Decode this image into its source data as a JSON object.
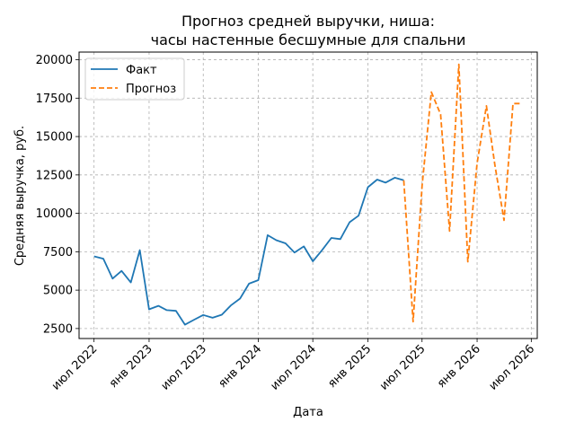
{
  "chart_data": {
    "type": "line",
    "title_line1": "Прогноз средней выручки, ниша:",
    "title_line2": "часы настенные бесшумные для спальни",
    "xlabel": "Дата",
    "ylabel": "Средняя выручка, руб.",
    "x_ticks": [
      {
        "date": "2022-07-01",
        "label": "июл 2022"
      },
      {
        "date": "2023-01-01",
        "label": "янв 2023"
      },
      {
        "date": "2023-07-01",
        "label": "июл 2023"
      },
      {
        "date": "2024-01-01",
        "label": "янв 2024"
      },
      {
        "date": "2024-07-01",
        "label": "июл 2024"
      },
      {
        "date": "2025-01-01",
        "label": "янв 2025"
      },
      {
        "date": "2025-07-01",
        "label": "июл 2025"
      },
      {
        "date": "2026-01-01",
        "label": "янв 2026"
      },
      {
        "date": "2026-07-01",
        "label": "июл 2026"
      }
    ],
    "y_ticks": [
      {
        "value": 2500,
        "label": "2500"
      },
      {
        "value": 5000,
        "label": "5000"
      },
      {
        "value": 7500,
        "label": "7500"
      },
      {
        "value": 10000,
        "label": "10000"
      },
      {
        "value": 12500,
        "label": "12500"
      },
      {
        "value": 15000,
        "label": "15000"
      },
      {
        "value": 17500,
        "label": "17500"
      },
      {
        "value": 20000,
        "label": "20000"
      }
    ],
    "xlim": [
      "2022-05-12",
      "2026-07-21"
    ],
    "ylim": [
      1850,
      20500
    ],
    "grid": true,
    "legend_position": "top-left",
    "series": [
      {
        "name": "Факт",
        "color": "#1f77b4",
        "style": "solid",
        "x": [
          "2022-07-01",
          "2022-08-01",
          "2022-09-01",
          "2022-10-01",
          "2022-11-01",
          "2022-12-01",
          "2023-01-01",
          "2023-02-01",
          "2023-03-01",
          "2023-04-01",
          "2023-05-01",
          "2023-06-01",
          "2023-07-01",
          "2023-08-01",
          "2023-09-01",
          "2023-10-01",
          "2023-11-01",
          "2023-12-01",
          "2024-01-01",
          "2024-02-01",
          "2024-03-01",
          "2024-04-01",
          "2024-05-01",
          "2024-06-01",
          "2024-07-01",
          "2024-08-01",
          "2024-09-01",
          "2024-10-01",
          "2024-11-01",
          "2024-12-01",
          "2025-01-01",
          "2025-02-01",
          "2025-03-01",
          "2025-04-01",
          "2025-05-01"
        ],
        "values": [
          7200,
          7050,
          5750,
          6250,
          5500,
          7600,
          3750,
          3980,
          3700,
          3650,
          2750,
          3080,
          3380,
          3200,
          3400,
          4000,
          4450,
          5420,
          5650,
          8580,
          8250,
          8050,
          7450,
          7850,
          6880,
          7600,
          8400,
          8320,
          9420,
          9850,
          11700,
          12200,
          12000,
          12320,
          12150
        ]
      },
      {
        "name": "Прогноз",
        "color": "#ff7f0e",
        "style": "dashed",
        "x": [
          "2025-05-01",
          "2025-06-01",
          "2025-07-01",
          "2025-08-01",
          "2025-09-01",
          "2025-10-01",
          "2025-11-01",
          "2025-12-01",
          "2026-01-01",
          "2026-02-01",
          "2026-03-01",
          "2026-04-01",
          "2026-05-01",
          "2026-06-01"
        ],
        "values": [
          12150,
          2950,
          11800,
          17900,
          16450,
          8850,
          19700,
          6850,
          13250,
          17000,
          13200,
          9550,
          17150,
          17150
        ]
      }
    ]
  }
}
